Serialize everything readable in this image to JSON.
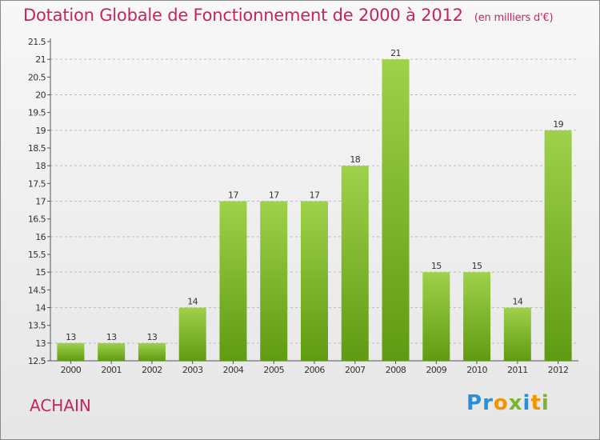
{
  "header": {
    "title": "Dotation Globale de Fonctionnement de 2000 à 2012",
    "subtitle": "(en milliers d'€)"
  },
  "footer": {
    "commune": "ACHAIN",
    "logo_text": "Proxiti"
  },
  "colors": {
    "title": "#c6245b",
    "bar_top": "#9fd14a",
    "bar_bottom": "#5f9b12",
    "grid": "#bdbdbd"
  },
  "chart_data": {
    "type": "bar",
    "title": "Dotation Globale de Fonctionnement de 2000 à 2012",
    "subtitle": "(en milliers d'€)",
    "categories": [
      "2000",
      "2001",
      "2002",
      "2003",
      "2004",
      "2005",
      "2006",
      "2007",
      "2008",
      "2009",
      "2010",
      "2011",
      "2012"
    ],
    "values": [
      13,
      13,
      13,
      14,
      17,
      17,
      17,
      18,
      21,
      15,
      15,
      14,
      19
    ],
    "ylim": [
      12.5,
      21.5
    ],
    "yticks": [
      "12.5",
      "13",
      "13.5",
      "14",
      "14.5",
      "15",
      "15.5",
      "16",
      "16.5",
      "17",
      "17.5",
      "18",
      "18.5",
      "19",
      "19.5",
      "20",
      "20.5",
      "21",
      "21.5"
    ],
    "grid": true,
    "gridlines_at": [
      13,
      14,
      15,
      16,
      17,
      18,
      19,
      20,
      21
    ],
    "xlabel": "",
    "ylabel": ""
  }
}
